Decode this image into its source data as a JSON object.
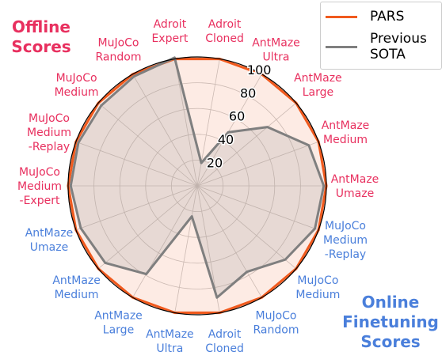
{
  "chart_data": {
    "type": "radar",
    "group_titles": {
      "offline": "Offline\nScores",
      "online": "Online\nFinetuning\nScores"
    },
    "categories": [
      {
        "label": "Adroit\nCloned",
        "group": "offline"
      },
      {
        "label": "AntMaze\nUltra",
        "group": "offline"
      },
      {
        "label": "AntMaze\nLarge",
        "group": "offline"
      },
      {
        "label": "AntMaze\nMedium",
        "group": "offline"
      },
      {
        "label": "AntMaze\nUmaze",
        "group": "offline"
      },
      {
        "label": "MuJoCo\nMedium\n-Replay",
        "group": "online"
      },
      {
        "label": "MuJoCo\nMedium",
        "group": "online"
      },
      {
        "label": "MuJoCo\nRandom",
        "group": "online"
      },
      {
        "label": "Adroit\nCloned",
        "group": "online"
      },
      {
        "label": "AntMaze\nUltra",
        "group": "online"
      },
      {
        "label": "AntMaze\nLarge",
        "group": "online"
      },
      {
        "label": "AntMaze\nMedium",
        "group": "online"
      },
      {
        "label": "AntMaze\nUmaze",
        "group": "online"
      },
      {
        "label": "MuJoCo\nMedium\n-Expert",
        "group": "offline"
      },
      {
        "label": "MuJoCo\nMedium\n-Replay",
        "group": "offline"
      },
      {
        "label": "MuJoCo\nMedium",
        "group": "offline"
      },
      {
        "label": "MuJoCo\nRandom",
        "group": "offline"
      },
      {
        "label": "Adroit\nExpert",
        "group": "offline"
      }
    ],
    "series": [
      {
        "name": "PARS",
        "color": "#F05A1E",
        "values": [
          100,
          100,
          100,
          100,
          100,
          100,
          100,
          100,
          100,
          100,
          100,
          100,
          100,
          100,
          100,
          100,
          100,
          100
        ]
      },
      {
        "name": "Previous\nSOTA",
        "color": "#7F7F7F",
        "values": [
          18,
          48,
          71,
          92,
          98,
          97,
          89,
          77,
          88,
          24,
          79,
          93,
          96,
          98,
          98,
          97,
          98,
          101
        ]
      }
    ],
    "rticks": [
      20,
      40,
      60,
      80,
      100
    ],
    "rlim": [
      0,
      100
    ],
    "grid": true,
    "legend": "top-right",
    "colors": {
      "offline_label": "#E8305F",
      "online_label": "#4A7FDB",
      "fill": "#F05A1E"
    }
  }
}
